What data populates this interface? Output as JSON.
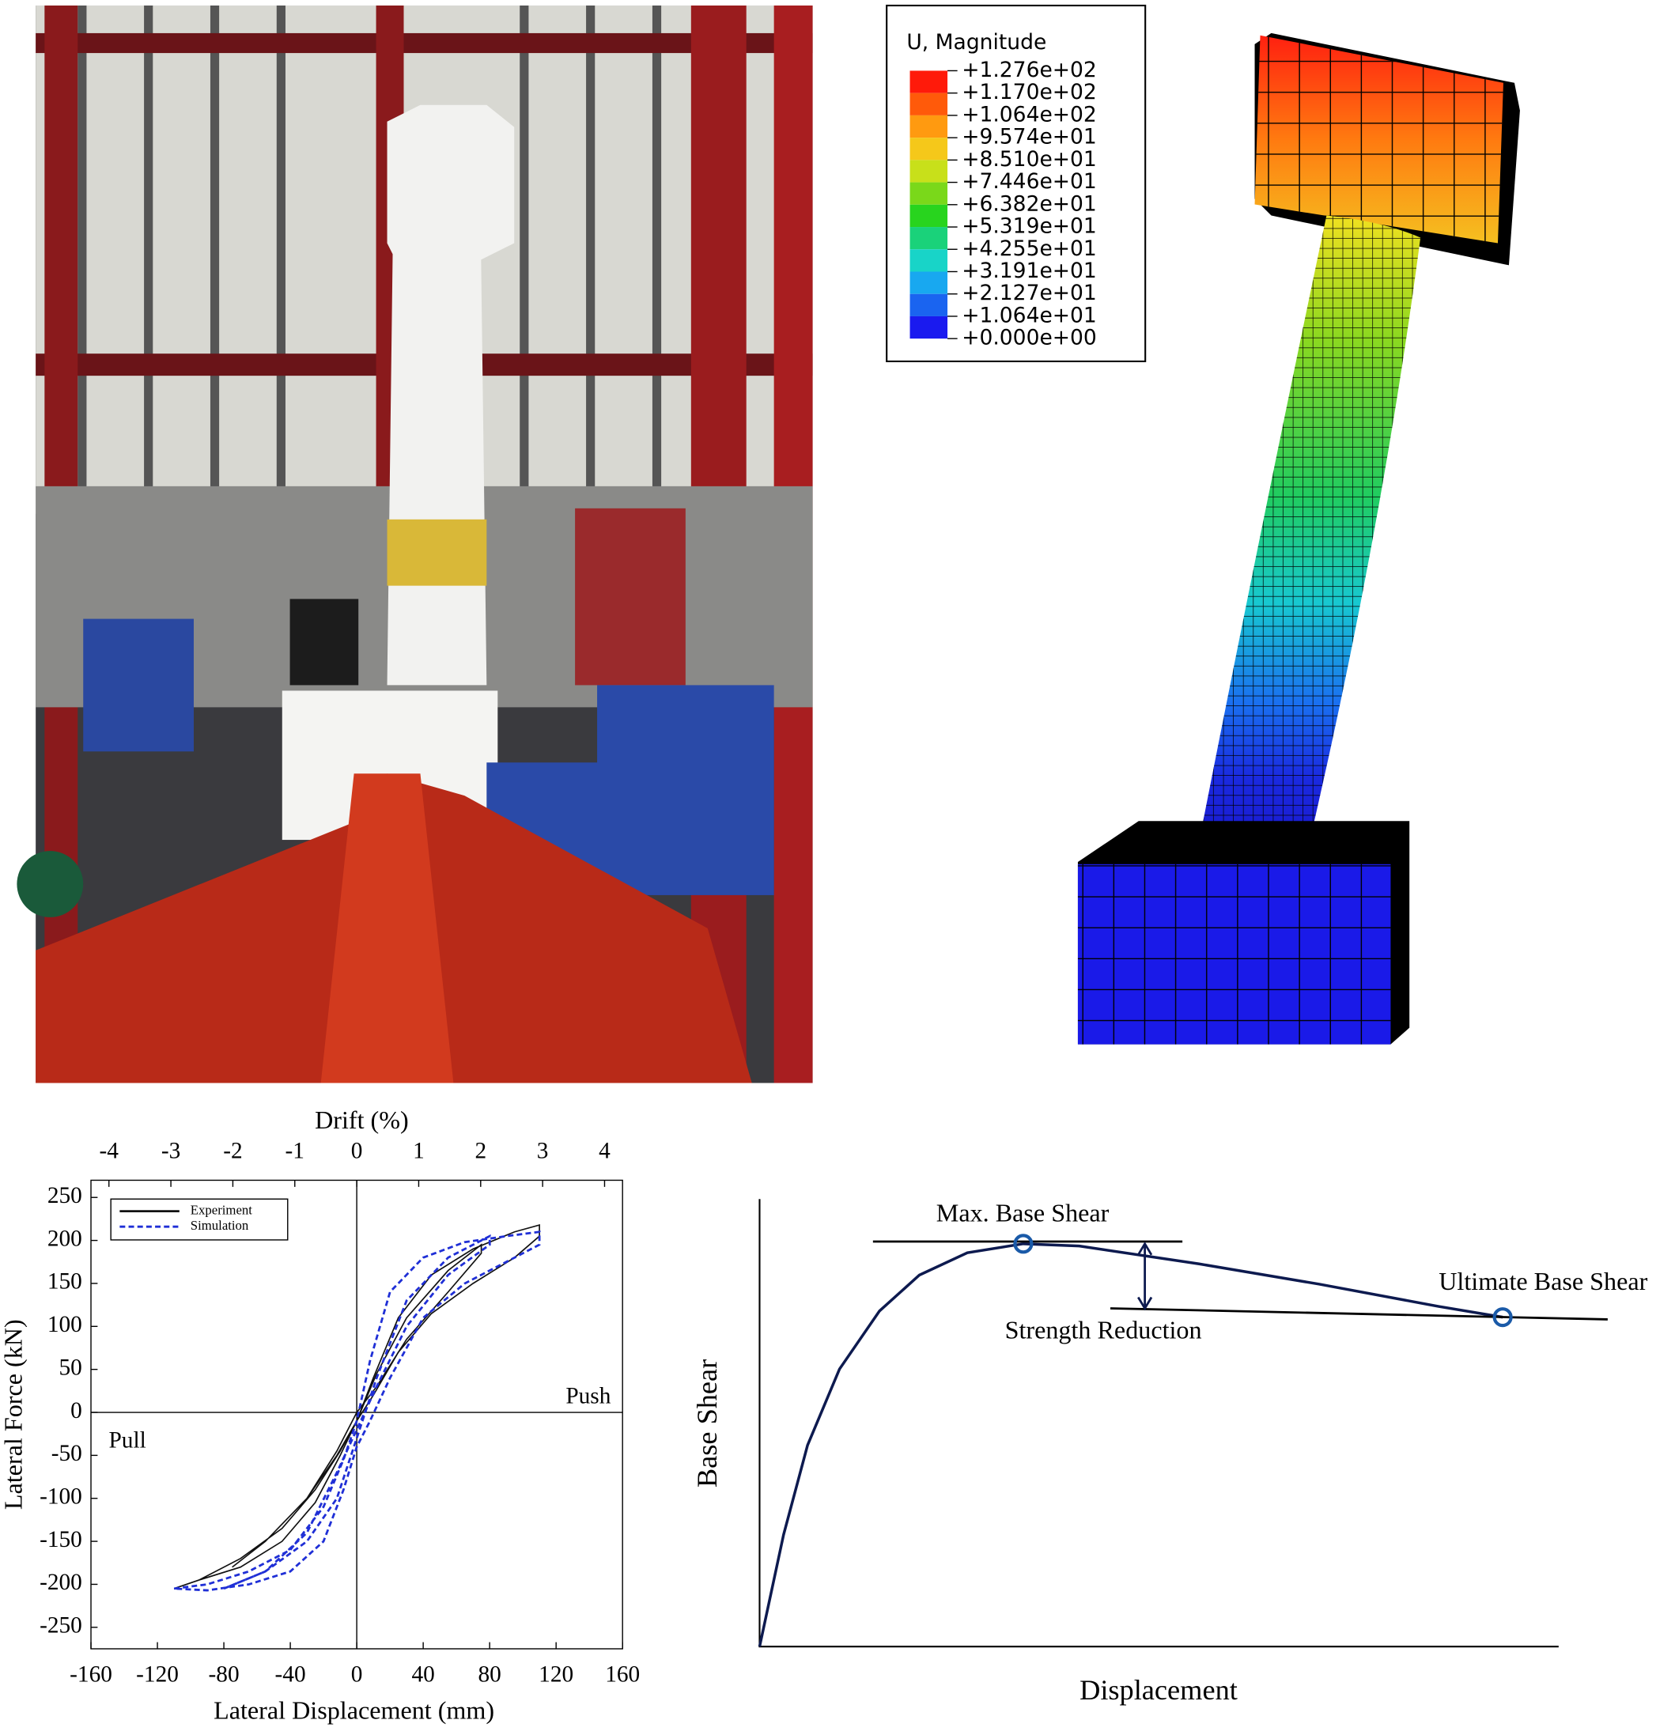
{
  "contour_legend": {
    "title": "U, Magnitude",
    "labels": [
      "+1.276e+02",
      "+1.170e+02",
      "+1.064e+02",
      "+9.574e+01",
      "+8.510e+01",
      "+7.446e+01",
      "+6.382e+01",
      "+5.319e+01",
      "+4.255e+01",
      "+3.191e+01",
      "+2.127e+01",
      "+1.064e+01",
      "+0.000e+00"
    ],
    "colors": [
      "#ff1a0a",
      "#ff5a0a",
      "#ff9a10",
      "#f5c81a",
      "#c8e01a",
      "#7ad81a",
      "#28d41e",
      "#1ad27a",
      "#18d4c8",
      "#18a8f0",
      "#1a64f0",
      "#1a1aef"
    ]
  },
  "chart_data": [
    {
      "type": "line",
      "x2_label": "Drift (%)",
      "x_label": "Lateral Displacement (mm)",
      "y_label": "Lateral Force (kN)",
      "xlim": [
        -160,
        160
      ],
      "xticks": [
        -160,
        -120,
        -80,
        -40,
        0,
        40,
        80,
        120,
        160
      ],
      "x2lim": [
        -4.29,
        4.29
      ],
      "x2ticks": [
        -4,
        -3,
        -2,
        -1,
        0,
        1,
        2,
        3,
        4
      ],
      "ylim": [
        -275,
        270
      ],
      "yticks": [
        -250,
        -200,
        -150,
        -100,
        -50,
        0,
        50,
        100,
        150,
        200,
        250
      ],
      "annotations": [
        "Push",
        "Pull"
      ],
      "series": [
        {
          "name": "Experiment",
          "color": "#111111",
          "x": [
            -110,
            -95,
            -70,
            -45,
            -25,
            -10,
            0,
            10,
            25,
            45,
            70,
            95,
            110,
            110,
            95,
            70,
            45,
            25,
            10,
            0,
            -10,
            -25,
            -45,
            -70,
            -95,
            -110,
            null,
            -75,
            -55,
            -30,
            -12,
            0,
            12,
            30,
            55,
            75,
            75,
            55,
            30,
            12,
            0,
            -12,
            -30,
            -55,
            -75
          ],
          "values": [
            -205,
            -195,
            -170,
            -135,
            -90,
            -45,
            -10,
            40,
            110,
            160,
            190,
            210,
            218,
            205,
            180,
            150,
            115,
            70,
            20,
            -10,
            -50,
            -105,
            -150,
            -180,
            -195,
            -205,
            null,
            -180,
            -150,
            -100,
            -50,
            -10,
            45,
            110,
            165,
            195,
            185,
            140,
            85,
            30,
            0,
            -45,
            -100,
            -150,
            -180
          ]
        },
        {
          "name": "Simulation",
          "color": "#1f2fd6",
          "x": [
            -110,
            -90,
            -65,
            -40,
            -20,
            -8,
            0,
            8,
            20,
            40,
            65,
            90,
            110,
            110,
            90,
            65,
            40,
            20,
            8,
            0,
            -8,
            -20,
            -40,
            -65,
            -90,
            -110,
            null,
            -80,
            -55,
            -30,
            -12,
            0,
            12,
            30,
            55,
            80,
            80,
            55,
            30,
            12,
            0,
            -12,
            -30,
            -55,
            -80
          ],
          "values": [
            -205,
            -200,
            -185,
            -160,
            -110,
            -55,
            -10,
            60,
            140,
            180,
            198,
            205,
            210,
            195,
            175,
            150,
            110,
            40,
            -10,
            -40,
            -90,
            -150,
            -185,
            -200,
            -207,
            -205,
            null,
            -205,
            -185,
            -150,
            -100,
            -30,
            40,
            130,
            180,
            205,
            195,
            160,
            100,
            30,
            -20,
            -70,
            -140,
            -185,
            -205
          ]
        }
      ]
    },
    {
      "type": "line",
      "x_label": "Displacement",
      "y_label": "Base Shear",
      "annotations": [
        "Max. Base Shear",
        "Strength Reduction",
        "Ultimate Base Shear"
      ],
      "xlim": [
        0,
        100
      ],
      "ylim": [
        0,
        100
      ],
      "color": "#0d1a4f",
      "x": [
        0,
        3,
        6,
        10,
        15,
        20,
        26,
        33,
        40,
        55,
        70,
        85,
        93
      ],
      "values": [
        0,
        25,
        45,
        62,
        75,
        83,
        88,
        90,
        89.5,
        85.5,
        81,
        76,
        73.6
      ],
      "points": [
        {
          "x": 33,
          "y": 90
        },
        {
          "x": 93,
          "y": 73.6
        }
      ]
    }
  ]
}
